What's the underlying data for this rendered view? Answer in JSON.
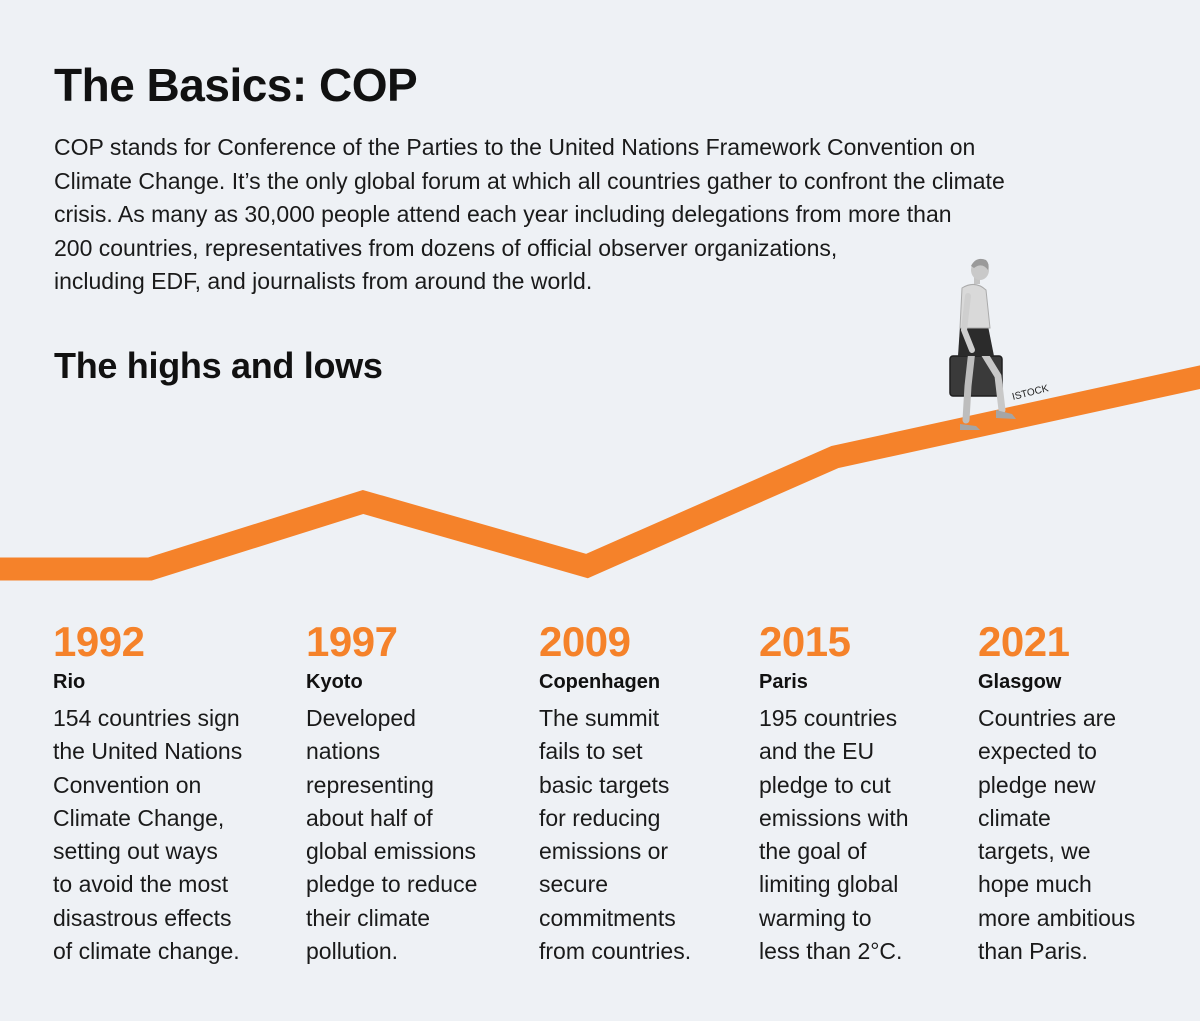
{
  "title": "The Basics: COP",
  "intro_lines": [
    "COP stands for Conference of the Parties to the United Nations Framework Convention on",
    "Climate Change. It’s the only global forum at which all countries gather to confront the climate",
    "crisis. As many as 30,000 people attend each year including delegations from more than",
    "200 countries, representatives from dozens of official observer organizations,",
    "including EDF, and journalists from around the world."
  ],
  "subtitle": "The highs and lows",
  "image_credit": "ISTOCK",
  "colors": {
    "accent": "#f5822a",
    "background": "#eef1f5",
    "text": "#111111"
  },
  "timeline": [
    {
      "year": "1992",
      "place": "Rio",
      "lines": [
        "154 countries sign",
        "the United Nations",
        "Convention on",
        "Climate Change,",
        "setting out ways",
        "to avoid the most",
        "disastrous effects",
        "of climate change."
      ]
    },
    {
      "year": "1997",
      "place": "Kyoto",
      "lines": [
        "Developed",
        "nations",
        "representing",
        "about half of",
        "global emissions",
        "pledge to reduce",
        "their climate",
        "pollution."
      ]
    },
    {
      "year": "2009",
      "place": "Copenhagen",
      "lines": [
        "The summit",
        "fails to set",
        "basic targets",
        "for reducing",
        "emissions or",
        "secure",
        "commitments",
        "from countries."
      ]
    },
    {
      "year": "2015",
      "place": "Paris",
      "lines": [
        "195 countries",
        "and the EU",
        "pledge to cut",
        "emissions with",
        "the goal of",
        "limiting global",
        "warming to",
        "less than 2°C."
      ]
    },
    {
      "year": "2021",
      "place": "Glasgow",
      "lines": [
        "Countries are",
        "expected to",
        "pledge new",
        "climate",
        "targets, we",
        "hope much",
        "more ambitious",
        "than Paris."
      ]
    }
  ]
}
